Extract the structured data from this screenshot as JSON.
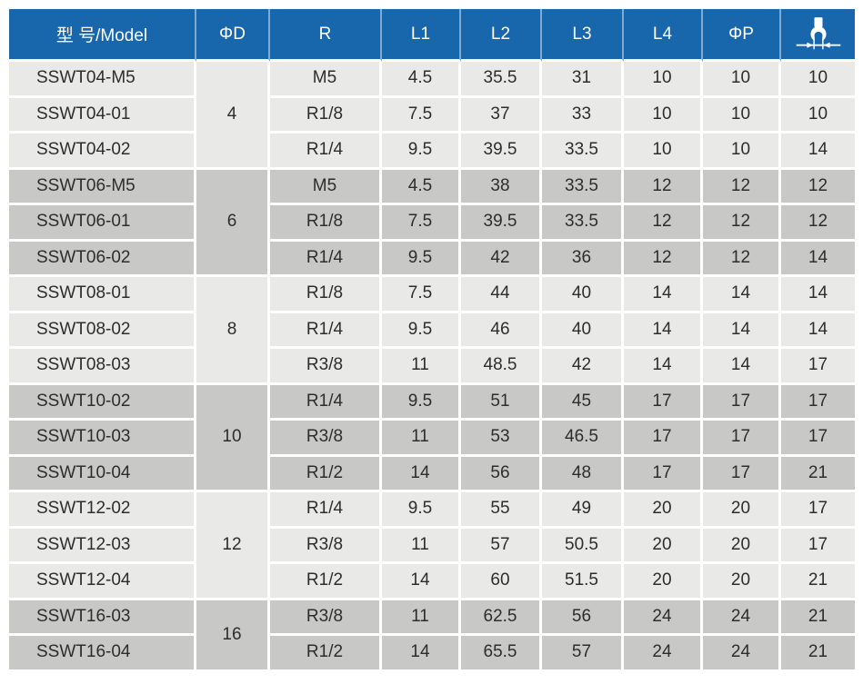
{
  "colors": {
    "header_bg": "#1867ac",
    "header_text": "#ffffff",
    "row_light": "#e9e9e7",
    "row_dark": "#c8c8c6",
    "cell_text": "#2d2d2d",
    "grid": "#ffffff"
  },
  "table": {
    "header": {
      "model": "型 号/Model",
      "d": "ΦD",
      "r": "R",
      "l1": "L1",
      "l2": "L2",
      "l3": "L3",
      "l4": "L4",
      "p": "ΦP",
      "wrench_icon": "wrench-width-across-flats-icon"
    },
    "groups": [
      {
        "d": "4",
        "shade": "light",
        "rows": [
          {
            "model": "SSWT04-M5",
            "r": "M5",
            "l1": "4.5",
            "l2": "35.5",
            "l3": "31",
            "l4": "10",
            "p": "10",
            "s": "10"
          },
          {
            "model": "SSWT04-01",
            "r": "R1/8",
            "l1": "7.5",
            "l2": "37",
            "l3": "33",
            "l4": "10",
            "p": "10",
            "s": "10"
          },
          {
            "model": "SSWT04-02",
            "r": "R1/4",
            "l1": "9.5",
            "l2": "39.5",
            "l3": "33.5",
            "l4": "10",
            "p": "10",
            "s": "14"
          }
        ]
      },
      {
        "d": "6",
        "shade": "dark",
        "rows": [
          {
            "model": "SSWT06-M5",
            "r": "M5",
            "l1": "4.5",
            "l2": "38",
            "l3": "33.5",
            "l4": "12",
            "p": "12",
            "s": "12"
          },
          {
            "model": "SSWT06-01",
            "r": "R1/8",
            "l1": "7.5",
            "l2": "39.5",
            "l3": "33.5",
            "l4": "12",
            "p": "12",
            "s": "12"
          },
          {
            "model": "SSWT06-02",
            "r": "R1/4",
            "l1": "9.5",
            "l2": "42",
            "l3": "36",
            "l4": "12",
            "p": "12",
            "s": "14"
          }
        ]
      },
      {
        "d": "8",
        "shade": "light",
        "rows": [
          {
            "model": "SSWT08-01",
            "r": "R1/8",
            "l1": "7.5",
            "l2": "44",
            "l3": "40",
            "l4": "14",
            "p": "14",
            "s": "14"
          },
          {
            "model": "SSWT08-02",
            "r": "R1/4",
            "l1": "9.5",
            "l2": "46",
            "l3": "40",
            "l4": "14",
            "p": "14",
            "s": "14"
          },
          {
            "model": "SSWT08-03",
            "r": "R3/8",
            "l1": "11",
            "l2": "48.5",
            "l3": "42",
            "l4": "14",
            "p": "14",
            "s": "17"
          }
        ]
      },
      {
        "d": "10",
        "shade": "dark",
        "rows": [
          {
            "model": "SSWT10-02",
            "r": "R1/4",
            "l1": "9.5",
            "l2": "51",
            "l3": "45",
            "l4": "17",
            "p": "17",
            "s": "17"
          },
          {
            "model": "SSWT10-03",
            "r": "R3/8",
            "l1": "11",
            "l2": "53",
            "l3": "46.5",
            "l4": "17",
            "p": "17",
            "s": "17"
          },
          {
            "model": "SSWT10-04",
            "r": "R1/2",
            "l1": "14",
            "l2": "56",
            "l3": "48",
            "l4": "17",
            "p": "17",
            "s": "21"
          }
        ]
      },
      {
        "d": "12",
        "shade": "light",
        "rows": [
          {
            "model": "SSWT12-02",
            "r": "R1/4",
            "l1": "9.5",
            "l2": "55",
            "l3": "49",
            "l4": "20",
            "p": "20",
            "s": "17"
          },
          {
            "model": "SSWT12-03",
            "r": "R3/8",
            "l1": "11",
            "l2": "57",
            "l3": "50.5",
            "l4": "20",
            "p": "20",
            "s": "17"
          },
          {
            "model": "SSWT12-04",
            "r": "R1/2",
            "l1": "14",
            "l2": "60",
            "l3": "51.5",
            "l4": "20",
            "p": "20",
            "s": "21"
          }
        ]
      },
      {
        "d": "16",
        "shade": "dark",
        "rows": [
          {
            "model": "SSWT16-03",
            "r": "R3/8",
            "l1": "11",
            "l2": "62.5",
            "l3": "56",
            "l4": "24",
            "p": "24",
            "s": "21"
          },
          {
            "model": "SSWT16-04",
            "r": "R1/2",
            "l1": "14",
            "l2": "65.5",
            "l3": "57",
            "l4": "24",
            "p": "24",
            "s": "21"
          }
        ]
      }
    ]
  }
}
